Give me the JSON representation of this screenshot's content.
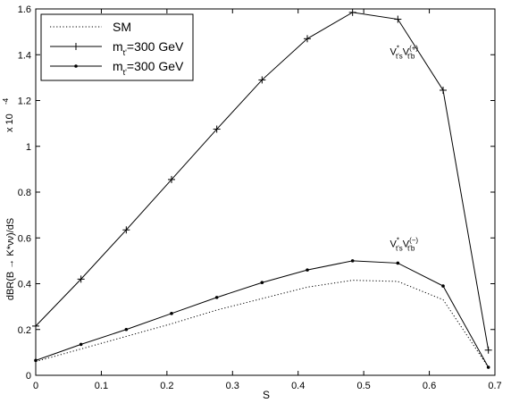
{
  "chart_data": {
    "type": "line",
    "xlabel": "S",
    "ylabel": "dBR(B → K*νν)/dS",
    "y_multiplier": "x 10",
    "y_multiplier_exp": "-4",
    "xlim": [
      0,
      0.7
    ],
    "ylim": [
      0,
      1.6
    ],
    "xticks": [
      0,
      0.1,
      0.2,
      0.3,
      0.4,
      0.5,
      0.6,
      0.7
    ],
    "xtick_labels": [
      "0",
      "0.1",
      "0.2",
      "0.3",
      "0.4",
      "0.5",
      "0.6",
      "0.7"
    ],
    "yticks": [
      0,
      0.2,
      0.4,
      0.6,
      0.8,
      1.0,
      1.2,
      1.4,
      1.6
    ],
    "ytick_labels": [
      "0",
      "0.2",
      "0.4",
      "0.6",
      "0.8",
      "1",
      "1.2",
      "1.4",
      "1.6"
    ],
    "grid": false,
    "legend_position": "top-left",
    "x": [
      0,
      0.069,
      0.138,
      0.207,
      0.276,
      0.345,
      0.414,
      0.483,
      0.552,
      0.621,
      0.69
    ],
    "series": [
      {
        "name": "SM",
        "style": "dotted",
        "marker": "none",
        "values": [
          0.06,
          0.115,
          0.17,
          0.225,
          0.285,
          0.335,
          0.385,
          0.415,
          0.41,
          0.33,
          0.035
        ]
      },
      {
        "name": "m_t'=300 GeV",
        "name_main": "m",
        "name_sub": "t'",
        "name_tail": "=300 GeV",
        "style": "solid",
        "marker": "plus",
        "values": [
          0.215,
          0.42,
          0.635,
          0.855,
          1.075,
          1.29,
          1.47,
          1.585,
          1.555,
          1.245,
          0.11
        ]
      },
      {
        "name": "m_t'=300 GeV",
        "name_main": "m",
        "name_sub": "t'",
        "name_tail": "=300 GeV",
        "style": "solid",
        "marker": "dot",
        "values": [
          0.065,
          0.135,
          0.2,
          0.27,
          0.34,
          0.405,
          0.46,
          0.5,
          0.49,
          0.39,
          0.035
        ]
      }
    ],
    "annotations": [
      {
        "text": "V*t's Vt'b(+)",
        "main1": "V",
        "sup1": "*",
        "sub1": "t's",
        "main2": "V",
        "sup2": "(+)",
        "sub2": "t'b",
        "x": 0.54,
        "y": 1.4
      },
      {
        "text": "V*t's Vt'b(−)",
        "main1": "V",
        "sup1": "*",
        "sub1": "t's",
        "main2": "V",
        "sup2": "(−)",
        "sub2": "t'b",
        "x": 0.54,
        "y": 0.56
      }
    ]
  }
}
